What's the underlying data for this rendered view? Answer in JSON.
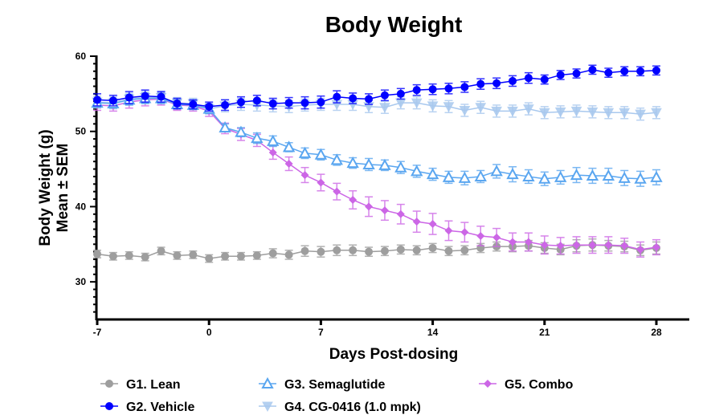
{
  "chart_data": {
    "type": "line",
    "title": "Body Weight",
    "xlabel": "Days Post-dosing",
    "ylabel_line1": "Body Weight (g)",
    "ylabel_line2": "Mean ± SEM",
    "xlim": [
      -7,
      30
    ],
    "ylim": [
      25,
      60
    ],
    "xticks": [
      -7,
      0,
      7,
      14,
      21,
      28
    ],
    "yticks": [
      30,
      40,
      50,
      60
    ],
    "y_minor_step": 1,
    "grid": false,
    "legend_position": "bottom",
    "x": [
      -7,
      -6,
      -5,
      -4,
      -3,
      -2,
      -1,
      0,
      1,
      2,
      3,
      4,
      5,
      6,
      7,
      8,
      9,
      10,
      11,
      12,
      13,
      14,
      15,
      16,
      17,
      18,
      19,
      20,
      21,
      22,
      23,
      24,
      25,
      26,
      27,
      28
    ],
    "series": [
      {
        "name": "G1. Lean",
        "color": "#9e9e9e",
        "marker": "circle",
        "values": [
          33.7,
          33.4,
          33.5,
          33.3,
          34.1,
          33.5,
          33.6,
          33.1,
          33.4,
          33.4,
          33.5,
          33.8,
          33.6,
          34.1,
          34.0,
          34.2,
          34.2,
          34.0,
          34.1,
          34.3,
          34.2,
          34.5,
          34.1,
          34.2,
          34.5,
          34.7,
          34.7,
          34.8,
          34.5,
          34.3,
          34.8,
          34.9,
          34.8,
          34.7,
          34.2,
          34.5
        ],
        "sem": [
          0.5,
          0.5,
          0.5,
          0.5,
          0.5,
          0.5,
          0.5,
          0.5,
          0.5,
          0.5,
          0.5,
          0.6,
          0.6,
          0.7,
          0.7,
          0.7,
          0.7,
          0.6,
          0.6,
          0.6,
          0.6,
          0.6,
          0.6,
          0.6,
          0.6,
          0.6,
          0.7,
          0.7,
          0.7,
          0.7,
          0.8,
          0.8,
          0.7,
          0.7,
          0.7,
          0.8
        ]
      },
      {
        "name": "G2. Vehicle",
        "color": "#0000ff",
        "marker": "circle",
        "values": [
          54.2,
          54.1,
          54.5,
          54.7,
          54.6,
          53.7,
          53.6,
          53.3,
          53.5,
          53.9,
          54.1,
          53.7,
          53.8,
          53.8,
          53.9,
          54.6,
          54.4,
          54.3,
          54.8,
          55.0,
          55.5,
          55.6,
          55.7,
          55.9,
          56.3,
          56.4,
          56.7,
          57.1,
          56.9,
          57.5,
          57.7,
          58.2,
          57.8,
          58.0,
          58.0,
          58.1
        ],
        "sem": [
          0.8,
          0.7,
          0.8,
          0.8,
          0.7,
          0.7,
          0.6,
          0.6,
          0.7,
          0.7,
          0.7,
          0.7,
          0.7,
          0.8,
          0.8,
          0.8,
          0.7,
          0.7,
          0.7,
          0.7,
          0.7,
          0.7,
          0.7,
          0.7,
          0.7,
          0.7,
          0.7,
          0.7,
          0.6,
          0.6,
          0.6,
          0.6,
          0.6,
          0.6,
          0.6,
          0.6
        ]
      },
      {
        "name": "G3. Semaglutide",
        "color": "#5aa6f0",
        "marker": "triangle-up",
        "values": [
          53.8,
          53.7,
          54.2,
          54.4,
          54.4,
          53.6,
          53.5,
          53.0,
          50.5,
          49.9,
          49.1,
          48.7,
          47.9,
          47.1,
          46.9,
          46.2,
          45.8,
          45.6,
          45.5,
          45.2,
          44.7,
          44.3,
          43.9,
          43.8,
          44.0,
          44.7,
          44.3,
          44.0,
          43.7,
          43.9,
          44.2,
          44.1,
          44.1,
          43.8,
          43.7,
          43.9
        ],
        "sem": [
          0.6,
          0.6,
          0.7,
          0.7,
          0.7,
          0.6,
          0.6,
          0.6,
          0.5,
          0.6,
          0.7,
          0.7,
          0.6,
          0.7,
          0.7,
          0.7,
          0.7,
          0.8,
          0.7,
          0.8,
          0.8,
          0.8,
          0.8,
          0.9,
          0.8,
          0.9,
          1.0,
          0.9,
          0.9,
          0.9,
          1.0,
          1.0,
          1.0,
          1.0,
          1.0,
          1.0
        ]
      },
      {
        "name": "G4. CG-0416 (1.0 mpk)",
        "color": "#a8c8ee",
        "marker": "triangle-down",
        "values": [
          53.9,
          53.8,
          54.3,
          54.5,
          54.5,
          53.8,
          53.7,
          53.0,
          53.4,
          53.6,
          53.5,
          53.4,
          53.3,
          53.5,
          53.6,
          53.6,
          53.6,
          53.3,
          53.2,
          53.8,
          53.8,
          53.4,
          53.3,
          52.8,
          53.2,
          52.7,
          52.7,
          53.0,
          52.5,
          52.6,
          52.7,
          52.6,
          52.5,
          52.5,
          52.3,
          52.5
        ],
        "sem": [
          0.8,
          0.8,
          0.8,
          0.8,
          0.8,
          0.7,
          0.7,
          0.7,
          0.8,
          0.8,
          0.8,
          0.8,
          0.8,
          0.8,
          0.8,
          0.8,
          0.8,
          0.8,
          0.8,
          0.8,
          0.8,
          0.8,
          0.8,
          0.8,
          0.8,
          0.8,
          0.8,
          0.8,
          0.8,
          0.8,
          0.8,
          0.8,
          0.8,
          0.8,
          0.8,
          0.8
        ]
      },
      {
        "name": "G5. Combo",
        "color": "#cc66e6",
        "marker": "diamond",
        "values": [
          53.5,
          53.4,
          53.9,
          54.2,
          54.3,
          53.5,
          53.4,
          52.7,
          50.4,
          49.6,
          48.8,
          47.2,
          45.7,
          44.2,
          43.2,
          42.0,
          40.9,
          40.0,
          39.5,
          39.0,
          38.0,
          37.7,
          36.8,
          36.6,
          36.1,
          35.9,
          35.3,
          35.3,
          34.9,
          34.8,
          34.9,
          34.9,
          34.9,
          34.8,
          34.3,
          34.6
        ],
        "sem": [
          0.7,
          0.7,
          0.8,
          0.8,
          0.8,
          0.7,
          0.7,
          0.7,
          0.7,
          0.8,
          0.8,
          0.9,
          0.9,
          1.0,
          1.1,
          1.1,
          1.2,
          1.3,
          1.3,
          1.3,
          1.4,
          1.4,
          1.3,
          1.3,
          1.3,
          1.2,
          1.2,
          1.2,
          1.2,
          1.1,
          1.1,
          1.1,
          1.1,
          1.0,
          1.0,
          1.0
        ]
      }
    ]
  }
}
